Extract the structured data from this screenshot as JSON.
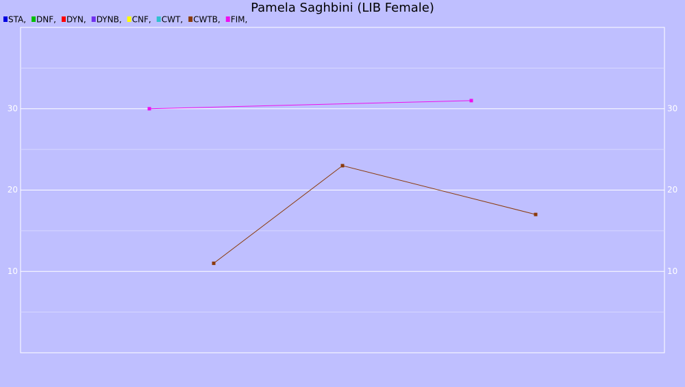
{
  "chart_data": {
    "type": "line",
    "title": "Pamela Saghbini (LIB Female)",
    "xlim": [
      0,
      10
    ],
    "ylim": [
      0,
      40
    ],
    "yticks": [
      10,
      20,
      30
    ],
    "yminorticks": [
      5,
      15,
      25,
      35
    ],
    "grid": true,
    "mirror_y_axis": true,
    "series": [
      {
        "name": "STA,",
        "color": "#0000e0",
        "x": [],
        "values": []
      },
      {
        "name": "DNF,",
        "color": "#00c000",
        "x": [],
        "values": []
      },
      {
        "name": "DYN,",
        "color": "#ff0000",
        "x": [],
        "values": []
      },
      {
        "name": "DYNB,",
        "color": "#7030f0",
        "x": [],
        "values": []
      },
      {
        "name": "CNF,",
        "color": "#ffff00",
        "x": [],
        "values": []
      },
      {
        "name": "CWT,",
        "color": "#30c0d0",
        "x": [],
        "values": []
      },
      {
        "name": "CWTB,",
        "color": "#8b3a0a",
        "x": [
          3,
          5,
          8
        ],
        "values": [
          11,
          23,
          17
        ]
      },
      {
        "name": "FIM,",
        "color": "#ee10ee",
        "x": [
          2,
          7
        ],
        "values": [
          30,
          31
        ]
      }
    ]
  }
}
